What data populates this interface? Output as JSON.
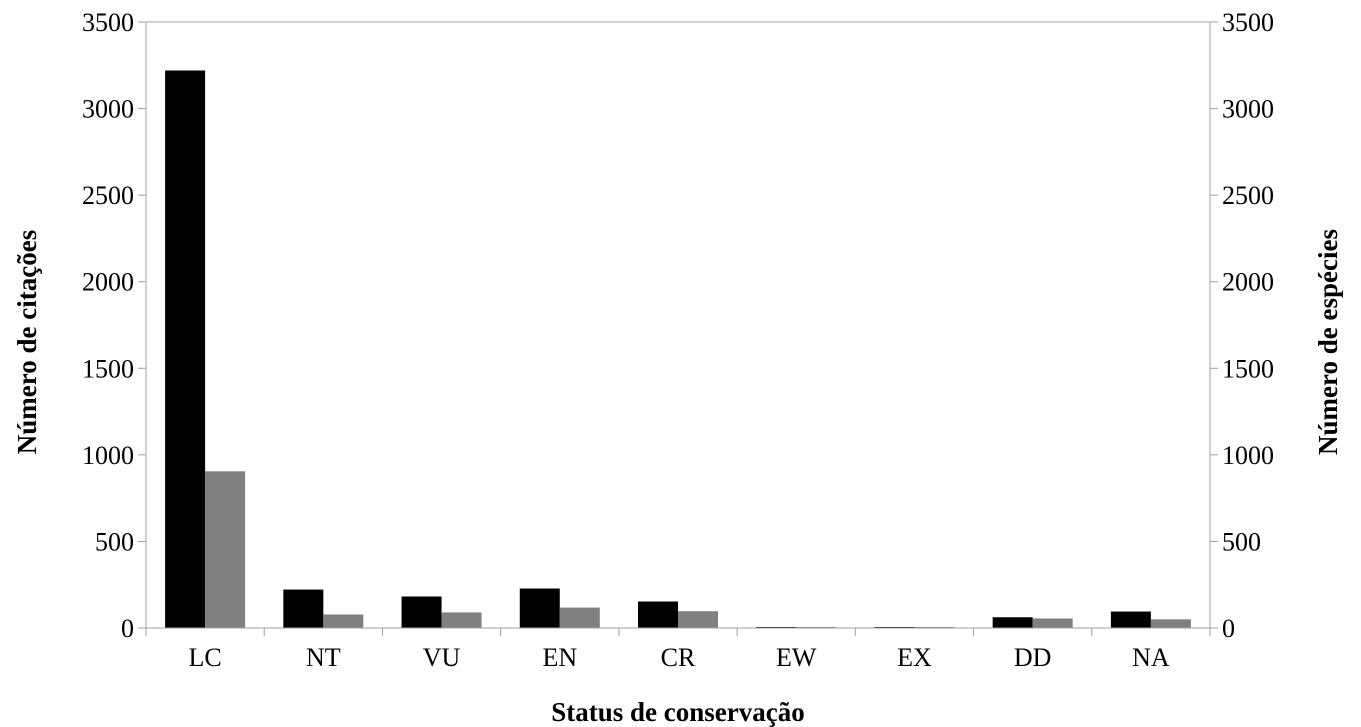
{
  "chart_data": {
    "type": "bar",
    "title": "",
    "xlabel": "Status de conservação",
    "ylabel": "Número de citações",
    "ylabel_right": "Número de espécies",
    "categories": [
      "LC",
      "NT",
      "VU",
      "EN",
      "CR",
      "EW",
      "EX",
      "DD",
      "NA"
    ],
    "series": [
      {
        "axis": "left",
        "color": "#000000",
        "values": [
          3220,
          222,
          182,
          228,
          153,
          3,
          2,
          62,
          95
        ]
      },
      {
        "axis": "right",
        "color": "#808080",
        "values": [
          905,
          78,
          90,
          118,
          97,
          2,
          2,
          55,
          50
        ]
      }
    ],
    "ylim": [
      0,
      3500
    ],
    "ylim_right": [
      0,
      3500
    ],
    "yticks": [
      "0",
      "500",
      "1000",
      "1500",
      "2000",
      "2500",
      "3000",
      "3500"
    ],
    "yticks_right": [
      "0",
      "500",
      "1000",
      "1500",
      "2000",
      "2500",
      "3000",
      "3500"
    ],
    "grid": false,
    "legend": "none"
  }
}
